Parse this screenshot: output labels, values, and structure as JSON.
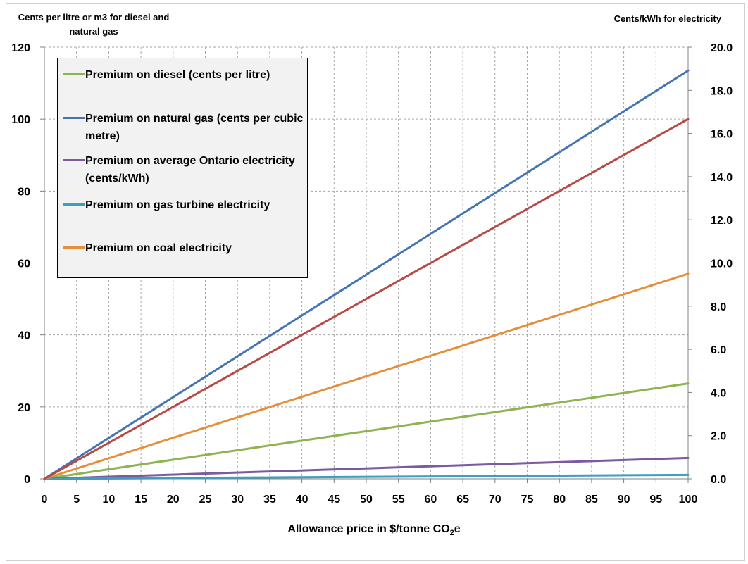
{
  "chart_data": {
    "type": "line",
    "left_axis_title": "Cents per litre or m3 for diesel and natural gas",
    "right_axis_title": "Cents/kWh for electricity",
    "xlabel_main": "Allowance price in $/tonne CO",
    "xlabel_sub": "2",
    "xlabel_tail": "e",
    "x": [
      0,
      5,
      10,
      15,
      20,
      25,
      30,
      35,
      40,
      45,
      50,
      55,
      60,
      65,
      70,
      75,
      80,
      85,
      90,
      95,
      100
    ],
    "x_ticks": [
      "0",
      "5",
      "10",
      "15",
      "20",
      "25",
      "30",
      "35",
      "40",
      "45",
      "50",
      "55",
      "60",
      "65",
      "70",
      "75",
      "80",
      "85",
      "90",
      "95",
      "100"
    ],
    "ylim_left": [
      0,
      120
    ],
    "y_ticks_left": [
      "0",
      "20",
      "40",
      "60",
      "80",
      "100",
      "120"
    ],
    "ylim_right": [
      0,
      20
    ],
    "y_ticks_right": [
      "0.0",
      "2.0",
      "4.0",
      "6.0",
      "8.0",
      "10.0",
      "12.0",
      "14.0",
      "16.0",
      "18.0",
      "20.0"
    ],
    "grid": true,
    "legend_position": "top-left",
    "series": [
      {
        "name": "Premium on diesel (cents per litre)",
        "color": "#8db352",
        "axis": "left",
        "x": [
          0,
          100
        ],
        "y": [
          0,
          26.5
        ]
      },
      {
        "name": "Premium on natural gas (cents per cubic metre)",
        "color": "#4674b2",
        "axis": "left",
        "x": [
          0,
          100
        ],
        "y": [
          0,
          113.5
        ]
      },
      {
        "name": "Premium on average Ontario electricity (cents/kWh)",
        "color": "#7c5aa0",
        "axis": "left",
        "x": [
          0,
          100
        ],
        "y": [
          0,
          5.8
        ]
      },
      {
        "name": "Premium on gas turbine electricity",
        "color": "#3d9fc0",
        "axis": "left",
        "x": [
          0,
          100
        ],
        "y": [
          0,
          1.1
        ]
      },
      {
        "name": "Premium on coal electricity",
        "color": "#e38f3c",
        "axis": "left",
        "x": [
          0,
          100
        ],
        "y": [
          0,
          57
        ]
      },
      {
        "name": "",
        "color": "#b54a46",
        "axis": "right",
        "x": [
          0,
          100
        ],
        "y": [
          0,
          16.67
        ]
      }
    ]
  }
}
